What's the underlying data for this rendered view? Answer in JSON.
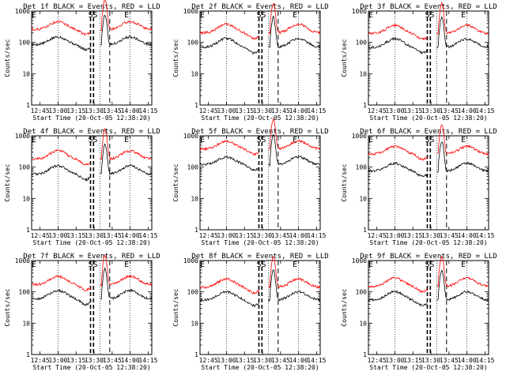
{
  "figure": {
    "series_colors": {
      "events": "#000000",
      "lld": "#ff0000"
    },
    "xlabel": "Start Time (20-Oct-05 12:38:20)",
    "ylabel": "Counts/sec"
  },
  "chart_data": [
    {
      "type": "line",
      "title": "Det 1f BLACK = Events, RED = LLD",
      "xlabel": "Start Time (20-Oct-05 12:38:20)",
      "ylabel": "Counts/sec",
      "yscale": "log",
      "ylim": [
        1,
        1000
      ],
      "yticks": [
        "1",
        "10",
        "100",
        "1000"
      ],
      "xticks": [
        "12:45",
        "13:00",
        "13:15",
        "13:30",
        "13:45",
        "14:00",
        "14:15"
      ],
      "xlim": [
        "12:38",
        "14:18"
      ],
      "flags": [
        "E",
        "SS",
        "E"
      ],
      "series": [
        {
          "name": "Events",
          "color": "#000000",
          "base": 85,
          "amp": 1.3,
          "shift": 0
        },
        {
          "name": "LLD",
          "color": "#ff0000",
          "base": 260,
          "amp": 1.3,
          "shift": 0
        }
      ]
    },
    {
      "type": "line",
      "title": "Det 2f BLACK = Events, RED = LLD",
      "xlabel": "Start Time (20-Oct-05 12:38:20)",
      "ylabel": "Counts/sec",
      "yscale": "log",
      "ylim": [
        1,
        1000
      ],
      "yticks": [
        "1",
        "10",
        "100",
        "1000"
      ],
      "xticks": [
        "12:45",
        "13:00",
        "13:15",
        "13:30",
        "13:45",
        "14:00",
        "14:15"
      ],
      "xlim": [
        "12:38",
        "14:18"
      ],
      "flags": [
        "E",
        "SS",
        "E"
      ],
      "series": [
        {
          "name": "Events",
          "color": "#000000",
          "base": 70,
          "amp": 1.5,
          "shift": 0
        },
        {
          "name": "LLD",
          "color": "#ff0000",
          "base": 200,
          "amp": 1.5,
          "shift": 0
        }
      ]
    },
    {
      "type": "line",
      "title": "Det 3f BLACK = Events, RED = LLD",
      "xlabel": "Start Time (20-Oct-05 12:38:20)",
      "ylabel": "Counts/sec",
      "yscale": "log",
      "ylim": [
        1,
        1000
      ],
      "yticks": [
        "1",
        "10",
        "100",
        "1000"
      ],
      "xticks": [
        "12:45",
        "13:00",
        "13:15",
        "13:30",
        "13:45",
        "14:00",
        "14:15"
      ],
      "xlim": [
        "12:38",
        "14:18"
      ],
      "flags": [
        "E",
        "SS",
        "E"
      ],
      "series": [
        {
          "name": "Events",
          "color": "#000000",
          "base": 70,
          "amp": 1.4,
          "shift": 0
        },
        {
          "name": "LLD",
          "color": "#ff0000",
          "base": 190,
          "amp": 1.4,
          "shift": 0
        }
      ]
    },
    {
      "type": "line",
      "title": "Det 4f BLACK = Events, RED = LLD",
      "xlabel": "Start Time (20-Oct-05 12:38:20)",
      "ylabel": "Counts/sec",
      "yscale": "log",
      "ylim": [
        1,
        1000
      ],
      "yticks": [
        "1",
        "10",
        "100",
        "1000"
      ],
      "xticks": [
        "12:45",
        "13:00",
        "13:15",
        "13:30",
        "13:45",
        "14:00",
        "14:15"
      ],
      "xlim": [
        "12:38",
        "14:18"
      ],
      "flags": [
        "E",
        "SS",
        "E"
      ],
      "series": [
        {
          "name": "Events",
          "color": "#000000",
          "base": 60,
          "amp": 1.4,
          "shift": 0
        },
        {
          "name": "LLD",
          "color": "#ff0000",
          "base": 180,
          "amp": 1.4,
          "shift": 0
        }
      ]
    },
    {
      "type": "line",
      "title": "Det 5f BLACK = Events, RED = LLD",
      "xlabel": "Start Time (20-Oct-05 12:38:20)",
      "ylabel": "Counts/sec",
      "yscale": "log",
      "ylim": [
        1,
        1000
      ],
      "yticks": [
        "1",
        "10",
        "100",
        "1000"
      ],
      "xticks": [
        "12:45",
        "13:00",
        "13:15",
        "13:30",
        "13:45",
        "14:00",
        "14:15"
      ],
      "xlim": [
        "12:38",
        "14:18"
      ],
      "flags": [
        "E",
        "SS",
        "E"
      ],
      "series": [
        {
          "name": "Events",
          "color": "#000000",
          "base": 120,
          "amp": 1.3,
          "shift": 0
        },
        {
          "name": "LLD",
          "color": "#ff0000",
          "base": 380,
          "amp": 1.3,
          "shift": 0
        }
      ]
    },
    {
      "type": "line",
      "title": "Det 6f BLACK = Events, RED = LLD",
      "xlabel": "Start Time (20-Oct-05 12:38:20)",
      "ylabel": "Counts/sec",
      "yscale": "log",
      "ylim": [
        1,
        1000
      ],
      "yticks": [
        "1",
        "10",
        "100",
        "1000"
      ],
      "xticks": [
        "12:45",
        "13:00",
        "13:15",
        "13:30",
        "13:45",
        "14:00",
        "14:15"
      ],
      "xlim": [
        "12:38",
        "14:18"
      ],
      "flags": [
        "E",
        "SS",
        "E"
      ],
      "series": [
        {
          "name": "Events",
          "color": "#000000",
          "base": 75,
          "amp": 1.3,
          "shift": 0
        },
        {
          "name": "LLD",
          "color": "#ff0000",
          "base": 260,
          "amp": 1.3,
          "shift": 0
        }
      ]
    },
    {
      "type": "line",
      "title": "Det 7f BLACK = Events, RED = LLD",
      "xlabel": "Start Time (20-Oct-05 12:38:20)",
      "ylabel": "Counts/sec",
      "yscale": "log",
      "ylim": [
        1,
        1000
      ],
      "yticks": [
        "1",
        "10",
        "100",
        "1000"
      ],
      "xticks": [
        "12:45",
        "13:00",
        "13:15",
        "13:30",
        "13:45",
        "14:00",
        "14:15"
      ],
      "xlim": [
        "12:38",
        "14:18"
      ],
      "flags": [
        "E",
        "SS",
        "E"
      ],
      "series": [
        {
          "name": "Events",
          "color": "#000000",
          "base": 60,
          "amp": 1.4,
          "shift": 0
        },
        {
          "name": "LLD",
          "color": "#ff0000",
          "base": 170,
          "amp": 1.4,
          "shift": 0
        }
      ]
    },
    {
      "type": "line",
      "title": "Det 8f BLACK = Events, RED = LLD",
      "xlabel": "Start Time (20-Oct-05 12:38:20)",
      "ylabel": "Counts/sec",
      "yscale": "log",
      "ylim": [
        1,
        1000
      ],
      "yticks": [
        "1",
        "10",
        "100",
        "1000"
      ],
      "xticks": [
        "12:45",
        "13:00",
        "13:15",
        "13:30",
        "13:45",
        "14:00",
        "14:15"
      ],
      "xlim": [
        "12:38",
        "14:18"
      ],
      "flags": [
        "E",
        "SS",
        "E"
      ],
      "series": [
        {
          "name": "Events",
          "color": "#000000",
          "base": 55,
          "amp": 1.4,
          "shift": 0
        },
        {
          "name": "LLD",
          "color": "#ff0000",
          "base": 140,
          "amp": 1.4,
          "shift": 0
        }
      ]
    },
    {
      "type": "line",
      "title": "Det 9f BLACK = Events, RED = LLD",
      "xlabel": "Start Time (20-Oct-05 12:38:20)",
      "ylabel": "Counts/sec",
      "yscale": "log",
      "ylim": [
        1,
        1000
      ],
      "yticks": [
        "1",
        "10",
        "100",
        "1000"
      ],
      "xticks": [
        "12:45",
        "13:00",
        "13:15",
        "13:30",
        "13:45",
        "14:00",
        "14:15"
      ],
      "xlim": [
        "12:38",
        "14:18"
      ],
      "flags": [
        "E",
        "SS",
        "E"
      ],
      "series": [
        {
          "name": "Events",
          "color": "#000000",
          "base": 55,
          "amp": 1.4,
          "shift": 0
        },
        {
          "name": "LLD",
          "color": "#ff0000",
          "base": 150,
          "amp": 1.4,
          "shift": 0
        }
      ]
    }
  ]
}
